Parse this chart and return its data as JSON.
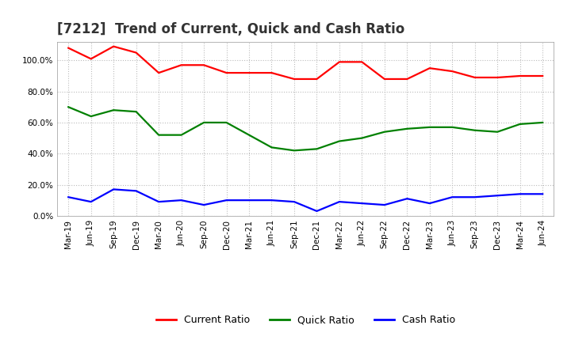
{
  "title": "[7212]  Trend of Current, Quick and Cash Ratio",
  "x_labels": [
    "Mar-19",
    "Jun-19",
    "Sep-19",
    "Dec-19",
    "Mar-20",
    "Jun-20",
    "Sep-20",
    "Dec-20",
    "Mar-21",
    "Jun-21",
    "Sep-21",
    "Dec-21",
    "Mar-22",
    "Jun-22",
    "Sep-22",
    "Dec-22",
    "Mar-23",
    "Jun-23",
    "Sep-23",
    "Dec-23",
    "Mar-24",
    "Jun-24"
  ],
  "current_ratio": [
    1.08,
    1.01,
    1.09,
    1.05,
    0.92,
    0.97,
    0.97,
    0.92,
    0.92,
    0.92,
    0.88,
    0.88,
    0.99,
    0.99,
    0.88,
    0.88,
    0.95,
    0.93,
    0.89,
    0.89,
    0.9,
    0.9
  ],
  "quick_ratio": [
    0.7,
    0.64,
    0.68,
    0.67,
    0.52,
    0.52,
    0.6,
    0.6,
    0.52,
    0.44,
    0.42,
    0.43,
    0.48,
    0.5,
    0.54,
    0.56,
    0.57,
    0.57,
    0.55,
    0.54,
    0.59,
    0.6
  ],
  "cash_ratio": [
    0.12,
    0.09,
    0.17,
    0.16,
    0.09,
    0.1,
    0.07,
    0.1,
    0.1,
    0.1,
    0.09,
    0.03,
    0.09,
    0.08,
    0.07,
    0.11,
    0.08,
    0.12,
    0.12,
    0.13,
    0.14,
    0.14
  ],
  "current_color": "#FF0000",
  "quick_color": "#008000",
  "cash_color": "#0000FF",
  "background_color": "#FFFFFF",
  "plot_bg_color": "#FFFFFF",
  "grid_color": "#BBBBBB",
  "ylim": [
    0.0,
    1.12
  ],
  "yticks": [
    0.0,
    0.2,
    0.4,
    0.6,
    0.8,
    1.0
  ],
  "legend_labels": [
    "Current Ratio",
    "Quick Ratio",
    "Cash Ratio"
  ],
  "title_fontsize": 12,
  "tick_fontsize": 7.5,
  "legend_fontsize": 9,
  "line_width": 1.6
}
